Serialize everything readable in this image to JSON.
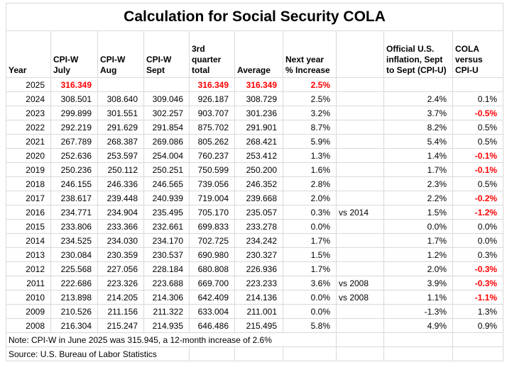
{
  "title": "Calculation for Social Security COLA",
  "colors": {
    "accent_red": "#ff0000",
    "text": "#000000",
    "gridline": "#d9d9d9",
    "background": "#ffffff"
  },
  "table": {
    "headers": [
      "Year",
      "CPI-W\nJuly",
      "CPI-W\nAug",
      "CPI-W\nSept",
      "3rd\nquarter\ntotal",
      "Average",
      "Next year\n% Increase",
      "",
      "Official U.S.\ninflation, Sept\nto Sept (CPI-U)",
      "COLA\nversus\nCPI-U"
    ],
    "rows": [
      [
        "2025",
        {
          "t": "316.349",
          "red": true
        },
        "",
        "",
        {
          "t": "316.349",
          "red": true
        },
        {
          "t": "316.349",
          "red": true
        },
        {
          "t": "2.5%",
          "red": true
        },
        "",
        "",
        ""
      ],
      [
        "2024",
        "308.501",
        "308.640",
        "309.046",
        "926.187",
        "308.729",
        "2.5%",
        "",
        "2.4%",
        "0.1%"
      ],
      [
        "2023",
        "299.899",
        "301.551",
        "302.257",
        "903.707",
        "301.236",
        "3.2%",
        "",
        "3.7%",
        {
          "t": "-0.5%",
          "red": true
        }
      ],
      [
        "2022",
        "292.219",
        "291.629",
        "291.854",
        "875.702",
        "291.901",
        "8.7%",
        "",
        "8.2%",
        "0.5%"
      ],
      [
        "2021",
        "267.789",
        "268.387",
        "269.086",
        "805.262",
        "268.421",
        "5.9%",
        "",
        "5.4%",
        "0.5%"
      ],
      [
        "2020",
        "252.636",
        "253.597",
        "254.004",
        "760.237",
        "253.412",
        "1.3%",
        "",
        "1.4%",
        {
          "t": "-0.1%",
          "red": true
        }
      ],
      [
        "2019",
        "250.236",
        "250.112",
        "250.251",
        "750.599",
        "250.200",
        "1.6%",
        "",
        "1.7%",
        {
          "t": "-0.1%",
          "red": true
        }
      ],
      [
        "2018",
        "246.155",
        "246.336",
        "246.565",
        "739.056",
        "246.352",
        "2.8%",
        "",
        "2.3%",
        "0.5%"
      ],
      [
        "2017",
        "238.617",
        "239.448",
        "240.939",
        "719.004",
        "239.668",
        "2.0%",
        "",
        "2.2%",
        {
          "t": "-0.2%",
          "red": true
        }
      ],
      [
        "2016",
        "234.771",
        "234.904",
        "235.495",
        "705.170",
        "235.057",
        "0.3%",
        "vs 2014",
        "1.5%",
        {
          "t": "-1.2%",
          "red": true
        }
      ],
      [
        "2015",
        "233.806",
        "233.366",
        "232.661",
        "699.833",
        "233.278",
        "0.0%",
        "",
        "0.0%",
        "0.0%"
      ],
      [
        "2014",
        "234.525",
        "234.030",
        "234.170",
        "702.725",
        "234.242",
        "1.7%",
        "",
        "1.7%",
        "0.0%"
      ],
      [
        "2013",
        "230.084",
        "230.359",
        "230.537",
        "690.980",
        "230.327",
        "1.5%",
        "",
        "1.2%",
        "0.3%"
      ],
      [
        "2012",
        "225.568",
        "227.056",
        "228.184",
        "680.808",
        "226.936",
        "1.7%",
        "",
        "2.0%",
        {
          "t": "-0.3%",
          "red": true
        }
      ],
      [
        "2011",
        "222.686",
        "223.326",
        "223.688",
        "669.700",
        "223.233",
        "3.6%",
        "vs 2008",
        "3.9%",
        {
          "t": "-0.3%",
          "red": true
        }
      ],
      [
        "2010",
        "213.898",
        "214.205",
        "214.306",
        "642.409",
        "214.136",
        "0.0%",
        "vs 2008",
        "1.1%",
        {
          "t": "-1.1%",
          "red": true
        }
      ],
      [
        "2009",
        "210.526",
        "211.156",
        "211.322",
        "633.004",
        "211.001",
        "0.0%",
        "",
        "-1.3%",
        "1.3%"
      ],
      [
        "2008",
        "216.304",
        "215.247",
        "214.935",
        "646.486",
        "215.495",
        "5.8%",
        "",
        "4.9%",
        "0.9%"
      ]
    ],
    "note": "Note: CPI-W in June 2025 was 315.945, a 12-month increase of 2.6%",
    "source": "Source: U.S. Bureau of Labor Statistics"
  }
}
